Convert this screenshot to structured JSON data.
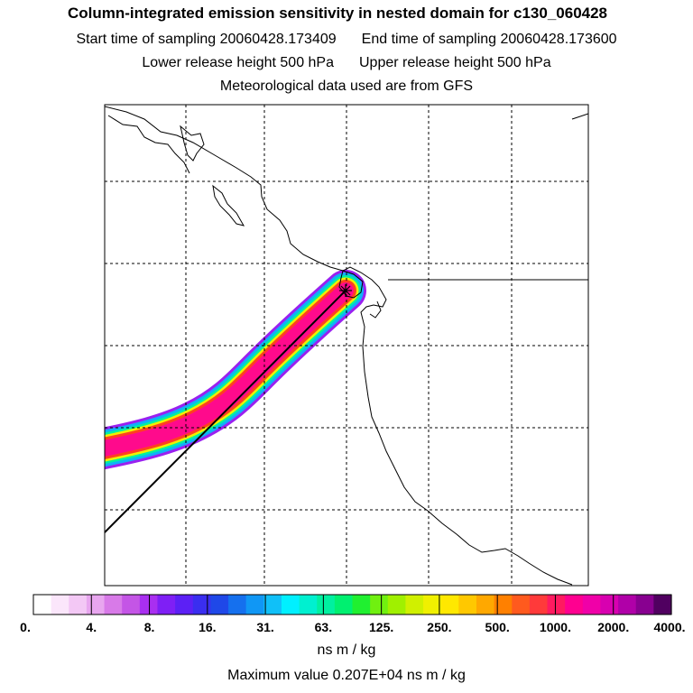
{
  "header": {
    "title": "Column-integrated emission sensitivity in nested domain for c130_060428",
    "start_label": "Start time of sampling 20060428.173409",
    "end_label": "End time of sampling 20060428.173600",
    "lower_label": "Lower release height  500 hPa",
    "upper_label": "Upper release height  500 hPa",
    "met_label": "Meteorological data used are from GFS"
  },
  "colorbar": {
    "ticks": [
      "0.",
      "4.",
      "8.",
      "16.",
      "31.",
      "63.",
      "125.",
      "250.",
      "500.",
      "1000.",
      "2000.",
      "4000."
    ],
    "unit": "ns m / kg",
    "colors": [
      "#ffffff",
      "#fbe6fb",
      "#f3c8f5",
      "#e8a6ef",
      "#d87ae8",
      "#c455e6",
      "#a92ff0",
      "#7f1ff5",
      "#5c20f5",
      "#3a2ef0",
      "#1f48e8",
      "#1570ee",
      "#1097f5",
      "#10c0f8",
      "#00f0ff",
      "#00f0d0",
      "#00f0a0",
      "#00f070",
      "#20f030",
      "#70f010",
      "#a0f000",
      "#d0f000",
      "#f0f000",
      "#ffe800",
      "#ffc800",
      "#ffa800",
      "#ff8000",
      "#ff5a1e",
      "#ff3a3a",
      "#ff1a60",
      "#ff0090",
      "#f000a8",
      "#d800b0",
      "#b000a8",
      "#880090",
      "#500060"
    ]
  },
  "footer": {
    "max_label": "Maximum value  0.207E+04 ns m / kg"
  },
  "map": {
    "plume_color_core": "#ff0a8c",
    "plume_edges": [
      "#ff4020",
      "#f0f000",
      "#00f0a0",
      "#10b0f8",
      "#9a20f0"
    ],
    "release_marker": "star"
  }
}
